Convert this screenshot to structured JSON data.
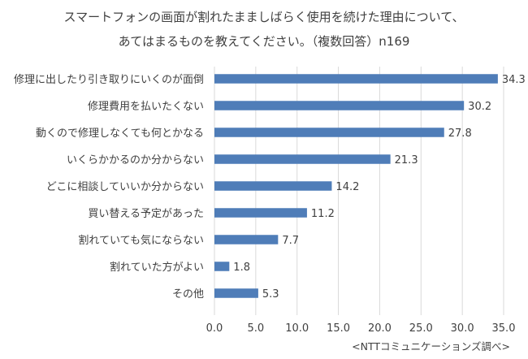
{
  "title_lines": [
    "スマートフォンの画面が割れたまましばらく使用を続けた理由について、",
    "あてはまるものを教えてください。（複数回答）n169"
  ],
  "source_note": "<NTTコミュニケーションズ調べ>",
  "colors": {
    "bar": "#4f7db8",
    "grid": "#d9d9d9",
    "text": "#404040"
  },
  "chart_data": {
    "type": "bar",
    "orientation": "horizontal",
    "title": "スマートフォンの画面が割れたまましばらく使用を続けた理由について、あてはまるものを教えてください。（複数回答）n169",
    "categories": [
      "修理に出したり引き取りにいくのが面倒",
      "修理費用を払いたくない",
      "動くので修理しなくても何とかなる",
      "いくらかかるのか分からない",
      "どこに相談していいか分からない",
      "買い替える予定があった",
      "割れていても気にならない",
      "割れていた方がよい",
      "その他"
    ],
    "values": [
      34.3,
      30.2,
      27.8,
      21.3,
      14.2,
      11.2,
      7.7,
      1.8,
      5.3
    ],
    "value_labels": [
      "34.3",
      "30.2",
      "27.8",
      "21.3",
      "14.2",
      "11.2",
      "7.7",
      "1.8",
      "5.3"
    ],
    "xlim": [
      0,
      35
    ],
    "x_ticks": [
      "0.0",
      "5.0",
      "10.0",
      "15.0",
      "20.0",
      "25.0",
      "30.0",
      "35.0"
    ],
    "x_tick_values": [
      0,
      5,
      10,
      15,
      20,
      25,
      30,
      35
    ],
    "grid": true,
    "legend": "none"
  }
}
